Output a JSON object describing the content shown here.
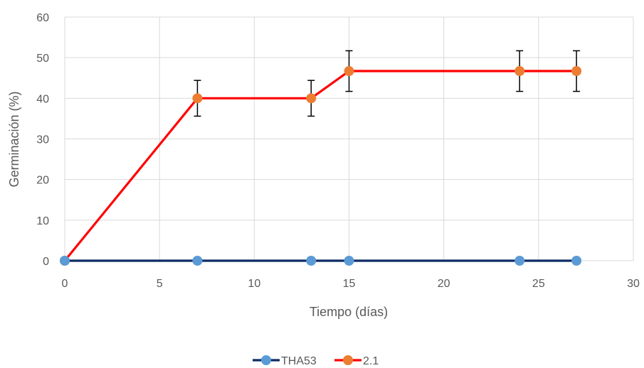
{
  "chart_data": {
    "type": "line",
    "xlabel": "Tiempo (días)",
    "ylabel": "Germinación (%)",
    "xlim": [
      0,
      30
    ],
    "ylim": [
      0,
      60
    ],
    "xticks": [
      "0",
      "5",
      "10",
      "15",
      "20",
      "25",
      "30"
    ],
    "yticks": [
      "0",
      "10",
      "20",
      "30",
      "40",
      "50",
      "60"
    ],
    "grid": true,
    "legend_position": "bottom-center",
    "series": [
      {
        "name": "THA53",
        "line_color": "#0d2a63",
        "marker_color": "#5b9bd5",
        "x": [
          0,
          7,
          13,
          15,
          24,
          27
        ],
        "y": [
          0,
          0,
          0,
          0,
          0,
          0
        ],
        "error": [
          0,
          0,
          0,
          0,
          0,
          0
        ]
      },
      {
        "name": "2.1",
        "line_color": "#ff0000",
        "marker_color": "#ed7d31",
        "x": [
          0,
          7,
          13,
          15,
          24,
          27
        ],
        "y": [
          0,
          40,
          40,
          46.7,
          46.7,
          46.7
        ],
        "error": [
          0,
          4.4,
          4.4,
          5,
          5,
          5
        ]
      }
    ]
  }
}
